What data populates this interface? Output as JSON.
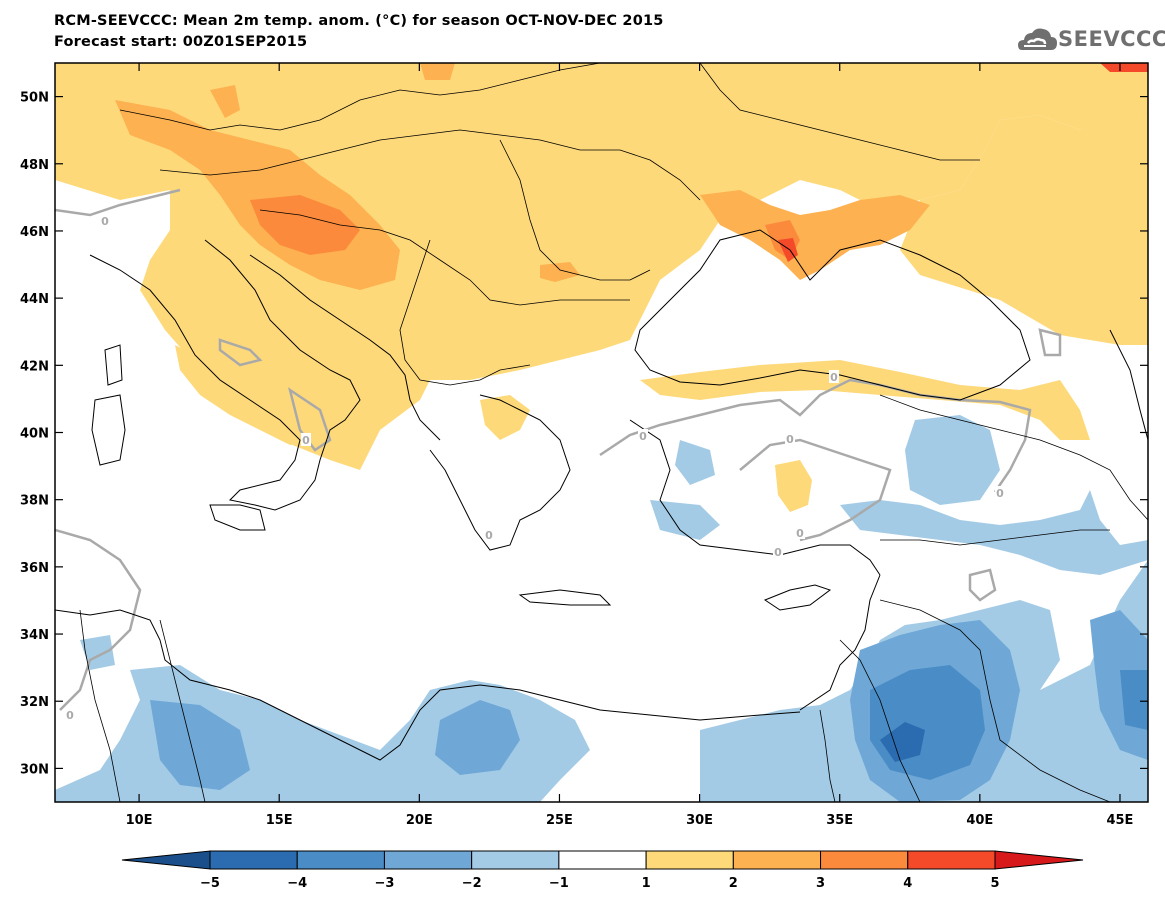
{
  "title": {
    "line1": "RCM-SEEVCCC: Mean 2m temp. anom. (°C) for season OCT-NOV-DEC 2015",
    "line2": "Forecast start: 00Z01SEP2015"
  },
  "logo": {
    "text": "SEEVCCC",
    "icon": "cloud-icon"
  },
  "map": {
    "lon_range": [
      7,
      46
    ],
    "lat_range": [
      29,
      51
    ],
    "lat_ticks": [
      {
        "value": 30,
        "label": "30N"
      },
      {
        "value": 32,
        "label": "32N"
      },
      {
        "value": 34,
        "label": "34N"
      },
      {
        "value": 36,
        "label": "36N"
      },
      {
        "value": 38,
        "label": "38N"
      },
      {
        "value": 40,
        "label": "40N"
      },
      {
        "value": 42,
        "label": "42N"
      },
      {
        "value": 44,
        "label": "44N"
      },
      {
        "value": 46,
        "label": "46N"
      },
      {
        "value": 48,
        "label": "48N"
      },
      {
        "value": 50,
        "label": "50N"
      }
    ],
    "lon_ticks": [
      {
        "value": 10,
        "label": "10E"
      },
      {
        "value": 15,
        "label": "15E"
      },
      {
        "value": 20,
        "label": "20E"
      },
      {
        "value": 25,
        "label": "25E"
      },
      {
        "value": 30,
        "label": "30E"
      },
      {
        "value": 35,
        "label": "35E"
      },
      {
        "value": 40,
        "label": "40E"
      },
      {
        "value": 45,
        "label": "45E"
      }
    ],
    "zero_contour_label": "0"
  },
  "colorbar": {
    "bins": [
      {
        "color": "#1a4f8c"
      },
      {
        "color": "#2b6bb0"
      },
      {
        "color": "#4a8cc6"
      },
      {
        "color": "#6fa8d6"
      },
      {
        "color": "#a3cbe6"
      },
      {
        "color": "#ffffff"
      },
      {
        "color": "#fed97a"
      },
      {
        "color": "#fdb150"
      },
      {
        "color": "#fb8a3c"
      },
      {
        "color": "#f44a2a"
      },
      {
        "color": "#d7191c"
      }
    ],
    "labels": [
      "−5",
      "−4",
      "−3",
      "−2",
      "−1",
      "1",
      "2",
      "3",
      "4",
      "5"
    ]
  }
}
